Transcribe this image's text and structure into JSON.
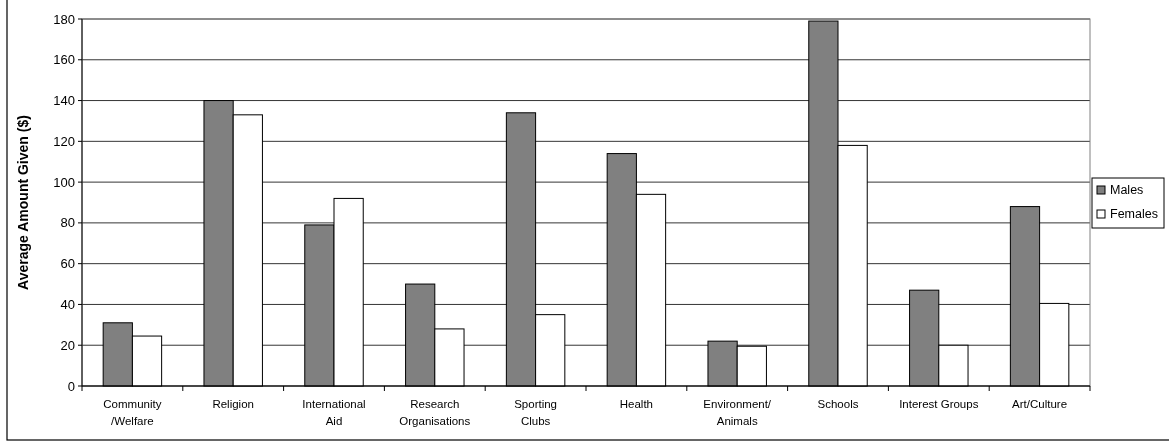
{
  "chart_data": {
    "type": "bar",
    "ylabel": "Average Amount Given ($)",
    "categories": [
      "Community\n/Welfare",
      "Religion",
      "International\nAid",
      "Research\nOrganisations",
      "Sporting\nClubs",
      "Health",
      "Environment/\nAnimals",
      "Schools",
      "Interest Groups",
      "Art/Culture"
    ],
    "series": [
      {
        "name": "Males",
        "color": "#808080",
        "values": [
          31,
          140,
          79,
          50,
          134,
          114,
          22,
          179,
          47,
          88
        ]
      },
      {
        "name": "Females",
        "color": "#ffffff",
        "values": [
          24.5,
          133,
          92,
          28,
          35,
          94,
          19.5,
          118,
          20,
          40.5
        ]
      }
    ],
    "ylim": [
      0,
      180
    ],
    "yticks": [
      0,
      20,
      40,
      60,
      80,
      100,
      120,
      140,
      160,
      180
    ],
    "grid": "y",
    "legend": "right"
  }
}
